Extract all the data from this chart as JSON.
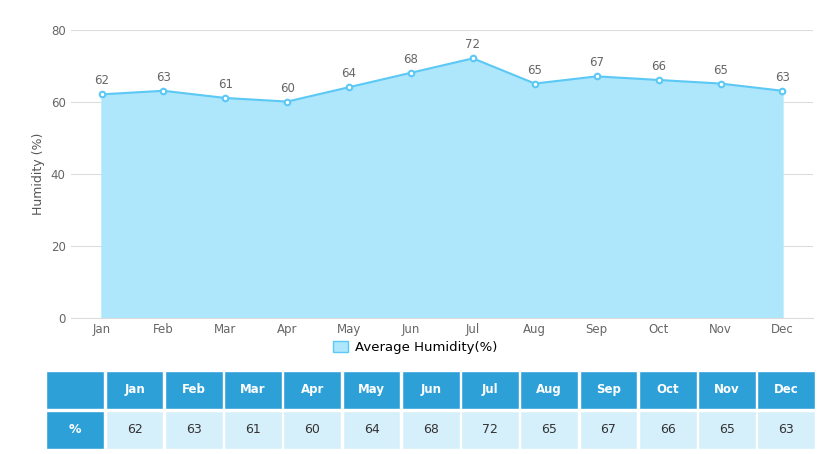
{
  "months": [
    "Jan",
    "Feb",
    "Mar",
    "Apr",
    "May",
    "Jun",
    "Jul",
    "Aug",
    "Sep",
    "Oct",
    "Nov",
    "Dec"
  ],
  "humidity": [
    62,
    63,
    61,
    60,
    64,
    68,
    72,
    65,
    67,
    66,
    65,
    63
  ],
  "line_color": "#5bc8f5",
  "fill_color": "#aee6fb",
  "marker_color": "#5bc8f5",
  "data_label_color": "#666666",
  "ylabel": "Humidity (%)",
  "ylim": [
    0,
    80
  ],
  "yticks": [
    0,
    20,
    40,
    60,
    80
  ],
  "legend_label": "Average Humidity(%)",
  "legend_patch_color": "#aee6fb",
  "legend_patch_edge": "#5bc8f5",
  "grid_color": "#dddddd",
  "table_header_bg": "#2da0d8",
  "table_header_fg": "#ffffff",
  "table_row_label_bg": "#2da0d8",
  "table_row_label_fg": "#ffffff",
  "table_data_bg": "#d6f0fb",
  "table_cell_fg": "#333333",
  "row_label": "%",
  "background_color": "#ffffff",
  "data_label_fontsize": 8.5,
  "axis_label_fontsize": 9,
  "tick_fontsize": 8.5,
  "legend_fontsize": 9.5
}
